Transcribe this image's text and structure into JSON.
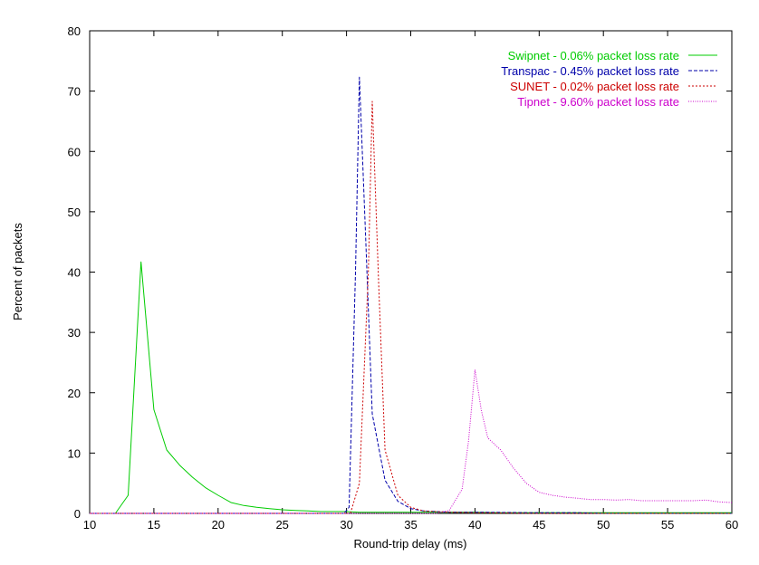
{
  "chart_data": {
    "type": "line",
    "title": "",
    "xlabel": "Round-trip delay (ms)",
    "ylabel": "Percent of packets",
    "xlim": [
      10,
      60
    ],
    "ylim": [
      0,
      80
    ],
    "x_ticks": [
      "10",
      "15",
      "20",
      "25",
      "30",
      "35",
      "40",
      "45",
      "50",
      "55",
      "60"
    ],
    "y_ticks": [
      "0",
      "10",
      "20",
      "30",
      "40",
      "50",
      "60",
      "70",
      "80"
    ],
    "grid": false,
    "legend_position": "top-right",
    "series": [
      {
        "name": "Swipnet - 0.06% packet loss rate",
        "color": "#00cc00",
        "dash": "solid",
        "x": [
          10,
          12,
          13,
          14,
          15,
          16,
          17,
          18,
          19,
          20,
          21,
          22,
          23,
          24,
          25,
          26,
          27,
          28,
          29,
          30,
          31,
          32,
          33,
          34,
          35,
          36,
          38,
          40,
          42,
          45,
          50,
          55,
          60
        ],
        "y": [
          0,
          0,
          3,
          41.7,
          17.2,
          10.5,
          8,
          6,
          4.3,
          3,
          1.8,
          1.3,
          1,
          0.8,
          0.6,
          0.5,
          0.4,
          0.3,
          0.3,
          0.3,
          0.2,
          0.2,
          0.2,
          0.2,
          0.2,
          0.2,
          0.2,
          0.2,
          0.1,
          0.1,
          0.1,
          0.1,
          0.1
        ]
      },
      {
        "name": "Transpac - 0.45% packet loss rate",
        "color": "#0000aa",
        "dash": "dashed",
        "x": [
          10,
          29.8,
          30.2,
          30.7,
          31,
          31.5,
          32,
          33,
          34,
          35,
          36,
          38,
          40,
          45,
          48,
          50,
          60
        ],
        "y": [
          0,
          0,
          1,
          40,
          72.3,
          45,
          16.5,
          5.5,
          2,
          0.8,
          0.4,
          0.2,
          0.2,
          0.1,
          0.1,
          0,
          0
        ]
      },
      {
        "name": "SUNET - 0.02% packet loss rate",
        "color": "#cc0000",
        "dash": "short-dashed",
        "x": [
          10,
          30.3,
          31,
          31.7,
          32,
          32.5,
          33,
          34,
          35,
          36,
          38,
          40,
          45,
          60
        ],
        "y": [
          0,
          0,
          5,
          40,
          68.3,
          38,
          10.5,
          3,
          1,
          0.4,
          0.2,
          0.1,
          0,
          0
        ]
      },
      {
        "name": "Tipnet - 9.60% packet loss rate",
        "color": "#cc00cc",
        "dash": "dotted",
        "x": [
          10,
          37,
          38,
          39,
          39.5,
          40,
          40.5,
          41,
          42,
          43,
          44,
          45,
          46,
          47,
          48,
          49,
          50,
          51,
          52,
          53,
          54,
          55,
          56,
          57,
          58,
          59,
          60
        ],
        "y": [
          0,
          0,
          0.5,
          4,
          12,
          23.8,
          17,
          12.5,
          10.5,
          7.5,
          5,
          3.5,
          3,
          2.7,
          2.5,
          2.3,
          2.3,
          2.2,
          2.3,
          2.1,
          2.1,
          2.1,
          2.1,
          2.1,
          2.2,
          1.9,
          1.8
        ]
      }
    ]
  }
}
